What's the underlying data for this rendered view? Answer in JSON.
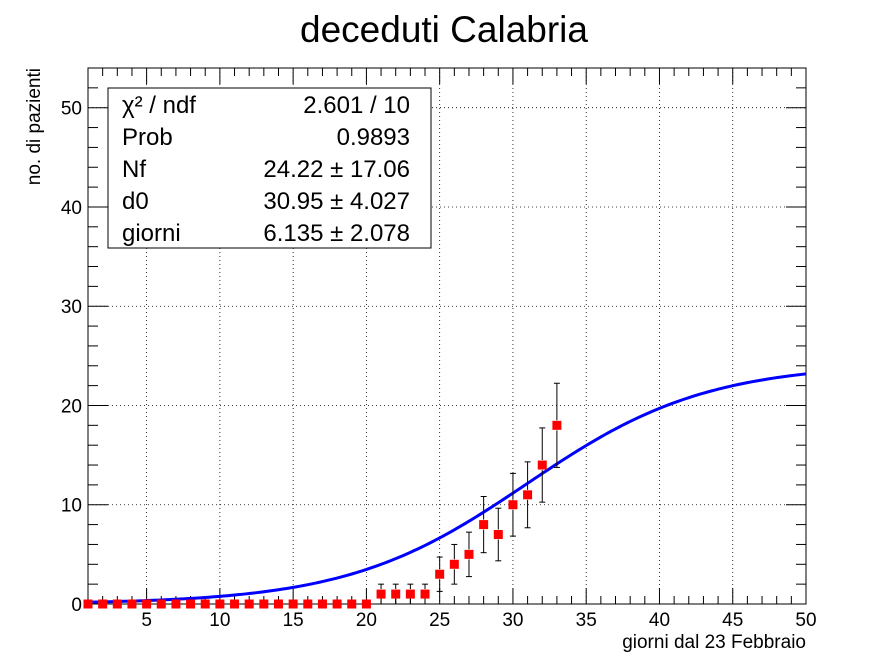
{
  "chart_data": {
    "type": "scatter",
    "title": "deceduti Calabria",
    "xlabel": "giorni dal 23 Febbraio",
    "ylabel": "no. di pazienti",
    "xlim": [
      1,
      50
    ],
    "ylim": [
      0,
      54
    ],
    "x_ticks": [
      5,
      10,
      15,
      20,
      25,
      30,
      35,
      40,
      45,
      50
    ],
    "y_ticks": [
      0,
      10,
      20,
      30,
      40,
      50
    ],
    "grid": true,
    "series": [
      {
        "type": "scatter-errorbars",
        "color": "#ff0000",
        "x": [
          1,
          2,
          3,
          4,
          5,
          6,
          7,
          8,
          9,
          10,
          11,
          12,
          13,
          14,
          15,
          16,
          17,
          18,
          19,
          20,
          21,
          22,
          23,
          24,
          25,
          26,
          27,
          28,
          29,
          30,
          31,
          32,
          33
        ],
        "y": [
          0,
          0,
          0,
          0,
          0,
          0,
          0,
          0,
          0,
          0,
          0,
          0,
          0,
          0,
          0,
          0,
          0,
          0,
          0,
          0,
          1,
          1,
          1,
          1,
          3,
          4,
          5,
          8,
          7,
          10,
          11,
          14,
          18
        ],
        "yerr": [
          0,
          0,
          0,
          0,
          0,
          0,
          0,
          0,
          0,
          0,
          0,
          0,
          0,
          0,
          0,
          0,
          0,
          0,
          0,
          0,
          1,
          1,
          1,
          1,
          1.73,
          2,
          2.24,
          2.83,
          2.65,
          3.16,
          3.32,
          3.74,
          4.24
        ]
      },
      {
        "type": "fit-line",
        "color": "#0000ff",
        "model": "Nf / (1 + exp(-(x - d0) / giorni))",
        "params": {
          "Nf": 24.22,
          "d0": 30.95,
          "giorni": 6.135
        }
      }
    ]
  },
  "stats_box": {
    "rows": [
      {
        "label": "χ² / ndf",
        "value": "2.601 / 10"
      },
      {
        "label": "Prob",
        "value": "0.9893"
      },
      {
        "label": "Nf",
        "value": "24.22 ± 17.06"
      },
      {
        "label": "d0",
        "value": "30.95 ± 4.027"
      },
      {
        "label": "giorni",
        "value": "6.135 ± 2.078"
      }
    ]
  }
}
